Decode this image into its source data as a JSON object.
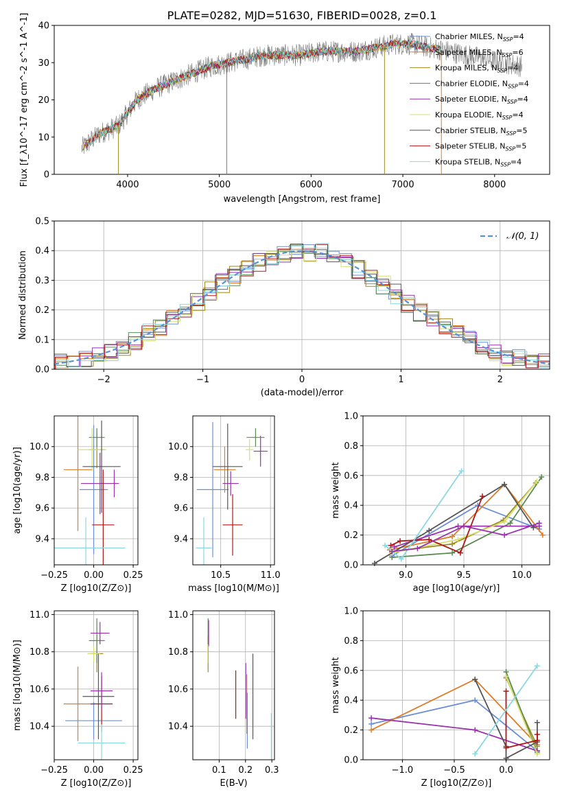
{
  "chart_data": [
    {
      "id": "spectrum",
      "type": "line",
      "title": "PLATE=0282, MJD=51630, FIBERID=0028, z=0.1",
      "xlabel": "wavelength [Angstrom, rest frame]",
      "ylabel": "Flux [f_λ10^-17 erg cm^-2 s^-1 A^-1]",
      "xlim": [
        3200,
        8600
      ],
      "ylim": [
        0,
        40
      ],
      "xticks": [
        4000,
        5000,
        6000,
        7000,
        8000
      ],
      "yticks": [
        0,
        10,
        20,
        30,
        40
      ],
      "grid": false,
      "legend_position": "top-right",
      "curve_x": [
        3500,
        3700,
        3900,
        4100,
        4300,
        4500,
        4700,
        4900,
        5100,
        5300,
        5500,
        5700,
        5900,
        6100,
        6300,
        6500,
        6700,
        6900,
        7100,
        7300,
        7500,
        7700,
        7900,
        8100,
        8300
      ],
      "curve_y": [
        7,
        11,
        13,
        20,
        23,
        25,
        27,
        29,
        30,
        31,
        32,
        32,
        32,
        33,
        33,
        33,
        34,
        35,
        35,
        34,
        33,
        32,
        31,
        30,
        29
      ],
      "series": [
        {
          "name": "Chabrier MILES, N_SSP=4",
          "color": "#6a8ed6"
        },
        {
          "name": "Salpeter MILES, N_SSP=6",
          "color": "#e07b25"
        },
        {
          "name": "Kroupa MILES, N_SSP=4",
          "color": "#a08a1a"
        },
        {
          "name": "Chabrier ELODIE, N_SSP=4",
          "color": "#5a8a50"
        },
        {
          "name": "Salpeter ELODIE, N_SSP=4",
          "color": "#9b2fae"
        },
        {
          "name": "Kroupa ELODIE, N_SSP=4",
          "color": "#d6e070"
        },
        {
          "name": "Chabrier STELIB, N_SSP=5",
          "color": "#555555"
        },
        {
          "name": "Salpeter STELIB, N_SSP=5",
          "color": "#b01515"
        },
        {
          "name": "Kroupa STELIB, N_SSP=4",
          "color": "#8ad8e0"
        }
      ]
    },
    {
      "id": "residuals",
      "type": "step",
      "xlabel": "(data-model)/error",
      "ylabel": "Normed distribution",
      "xlim": [
        -2.5,
        2.5
      ],
      "ylim": [
        0,
        0.5
      ],
      "xticks": [
        -2,
        -1,
        0,
        1,
        2
      ],
      "yticks": [
        0.0,
        0.1,
        0.2,
        0.3,
        0.4,
        0.5
      ],
      "grid": true,
      "legend_position": "top-right",
      "gaussian_label": "𝒩(0, 1)"
    },
    {
      "id": "age_vs_Z",
      "type": "scatter",
      "xlabel": "Z [log10(Z/Z⊙)]",
      "ylabel": "age  [log10(age/yr)]",
      "xlim": [
        -0.25,
        0.28
      ],
      "ylim": [
        9.23,
        10.2
      ],
      "xticks": [
        -0.25,
        0.0,
        0.25
      ],
      "yticks": [
        9.4,
        9.6,
        9.8,
        10.0
      ],
      "grid": true,
      "points": [
        {
          "series": 0,
          "x": 0.0,
          "y": 9.72,
          "xerr": 0.09,
          "yerr": 0.42
        },
        {
          "series": 1,
          "x": -0.1,
          "y": 9.85,
          "xerr": 0.09,
          "yerr": 0.4
        },
        {
          "series": 2,
          "x": 0.02,
          "y": 9.98,
          "xerr": 0.05,
          "yerr": 0.12
        },
        {
          "series": 3,
          "x": 0.02,
          "y": 10.06,
          "xerr": 0.05,
          "yerr": 0.06
        },
        {
          "series": 4,
          "x": 0.04,
          "y": 9.76,
          "xerr": 0.12,
          "yerr": 0.2
        },
        {
          "series": 5,
          "x": -0.01,
          "y": 9.98,
          "xerr": 0.09,
          "yerr": 0.14
        },
        {
          "series": 6,
          "x": 0.05,
          "y": 9.87,
          "xerr": 0.12,
          "yerr": 0.3
        },
        {
          "series": 7,
          "x": 0.06,
          "y": 9.49,
          "xerr": 0.07,
          "yerr": 0.36
        },
        {
          "series": 8,
          "x": -0.05,
          "y": 9.34,
          "xerr": 0.25,
          "yerr": 0.2
        },
        {
          "series": 4,
          "x": 0.13,
          "y": 9.76,
          "xerr": 0.01,
          "yerr": 0.09
        }
      ]
    },
    {
      "id": "age_vs_mass",
      "type": "scatter",
      "xlabel": "mass [log10(M/M⊙)]",
      "ylabel": "",
      "xlim": [
        10.22,
        11.04
      ],
      "ylim": [
        9.23,
        10.2
      ],
      "xticks": [
        10.5,
        11.0
      ],
      "yticks": [
        9.4,
        9.6,
        9.8,
        10.0
      ],
      "grid": true,
      "points": [
        {
          "series": 0,
          "x": 10.42,
          "y": 9.72,
          "xerr": 0.16,
          "yerr": 0.44
        },
        {
          "series": 1,
          "x": 10.54,
          "y": 9.85,
          "xerr": 0.11,
          "yerr": 0.15
        },
        {
          "series": 4,
          "x": 10.9,
          "y": 9.97,
          "xerr": 0.07,
          "yerr": 0.1
        },
        {
          "series": 3,
          "x": 10.85,
          "y": 10.06,
          "xerr": 0.09,
          "yerr": 0.06
        },
        {
          "series": 5,
          "x": 10.79,
          "y": 9.98,
          "xerr": 0.04,
          "yerr": 0.07
        },
        {
          "series": 6,
          "x": 10.57,
          "y": 9.87,
          "xerr": 0.15,
          "yerr": 0.28
        },
        {
          "series": 7,
          "x": 10.62,
          "y": 9.49,
          "xerr": 0.1,
          "yerr": 0.2
        },
        {
          "series": 8,
          "x": 10.33,
          "y": 9.34,
          "xerr": 0.08,
          "yerr": 0.2
        },
        {
          "series": 4,
          "x": 10.6,
          "y": 9.76,
          "xerr": 0.08,
          "yerr": 0.08
        }
      ]
    },
    {
      "id": "weight_vs_age",
      "type": "line",
      "xlabel": "age  [log10(age/yr)]",
      "ylabel": "mass weight",
      "xlim": [
        8.63,
        10.24
      ],
      "ylim": [
        0,
        1
      ],
      "xticks": [
        9.0,
        9.5,
        10.0
      ],
      "yticks": [
        0.0,
        0.2,
        0.4,
        0.6,
        0.8,
        1.0
      ],
      "grid": true,
      "lines": [
        {
          "series": 0,
          "x": [
            8.88,
            9.62,
            10.15
          ],
          "y": [
            0.06,
            0.4,
            0.24
          ]
        },
        {
          "series": 1,
          "x": [
            8.86,
            9.4,
            9.85,
            10.18
          ],
          "y": [
            0.1,
            0.19,
            0.54,
            0.2
          ]
        },
        {
          "series": 2,
          "x": [
            8.88,
            9.4,
            9.84,
            10.12
          ],
          "y": [
            0.09,
            0.14,
            0.3,
            0.55
          ]
        },
        {
          "series": 3,
          "x": [
            8.88,
            9.4,
            9.9,
            10.17
          ],
          "y": [
            0.05,
            0.08,
            0.28,
            0.59
          ]
        },
        {
          "series": 4,
          "x": [
            8.9,
            9.45,
            10.15
          ],
          "y": [
            0.12,
            0.26,
            0.26
          ]
        },
        {
          "series": 5,
          "x": [
            8.88,
            9.45,
            9.85,
            10.13
          ],
          "y": [
            0.08,
            0.17,
            0.29,
            0.56
          ]
        },
        {
          "series": 6,
          "x": [
            8.73,
            9.2,
            9.85,
            10.1
          ],
          "y": [
            0.01,
            0.23,
            0.54,
            0.25
          ]
        },
        {
          "series": 7,
          "x": [
            8.87,
            8.95,
            9.2,
            9.47,
            9.66
          ],
          "y": [
            0.13,
            0.16,
            0.17,
            0.08,
            0.46
          ]
        },
        {
          "series": 8,
          "x": [
            8.82,
            8.96,
            9.48
          ],
          "y": [
            0.13,
            0.04,
            0.63
          ]
        },
        {
          "series": 4,
          "x": [
            8.88,
            9.1,
            9.5,
            9.85,
            10.15
          ],
          "y": [
            0.09,
            0.11,
            0.26,
            0.2,
            0.28
          ]
        }
      ]
    },
    {
      "id": "mass_vs_Z",
      "type": "scatter",
      "xlabel": "Z [log10(Z/Z⊙)]",
      "ylabel": "mass [log10(M/M⊙)]",
      "xlim": [
        -0.25,
        0.28
      ],
      "ylim": [
        10.22,
        11.02
      ],
      "xticks": [
        -0.25,
        0.0,
        0.25
      ],
      "yticks": [
        10.4,
        10.6,
        10.8,
        11.0
      ],
      "grid": true,
      "points": [
        {
          "series": 0,
          "x": 0.0,
          "y": 10.43,
          "xerr": 0.18,
          "yerr": 0.1
        },
        {
          "series": 1,
          "x": -0.1,
          "y": 10.52,
          "xerr": 0.09,
          "yerr": 0.2
        },
        {
          "series": 2,
          "x": 0.02,
          "y": 10.79,
          "xerr": 0.04,
          "yerr": 0.1
        },
        {
          "series": 3,
          "x": 0.02,
          "y": 10.86,
          "xerr": 0.05,
          "yerr": 0.12
        },
        {
          "series": 4,
          "x": 0.04,
          "y": 10.9,
          "xerr": 0.06,
          "yerr": 0.06
        },
        {
          "series": 5,
          "x": 0.0,
          "y": 10.79,
          "xerr": 0.04,
          "yerr": 0.04
        },
        {
          "series": 6,
          "x": 0.03,
          "y": 10.56,
          "xerr": 0.1,
          "yerr": 0.23
        },
        {
          "series": 7,
          "x": 0.05,
          "y": 10.52,
          "xerr": 0.07,
          "yerr": 0.15
        },
        {
          "series": 8,
          "x": 0.05,
          "y": 10.31,
          "xerr": 0.15,
          "yerr": 0.1
        },
        {
          "series": 4,
          "x": 0.05,
          "y": 10.59,
          "xerr": 0.07,
          "yerr": 0.1
        }
      ]
    },
    {
      "id": "mass_vs_EBV",
      "type": "scatter",
      "xlabel": "E(B-V)",
      "ylabel": "",
      "xlim": [
        0.0,
        0.31
      ],
      "ylim": [
        10.22,
        11.02
      ],
      "xticks": [
        0.1,
        0.2,
        0.3
      ],
      "yticks": [
        10.4,
        10.6,
        10.8,
        11.0
      ],
      "grid": true,
      "points": [
        {
          "series": 0,
          "x": 0.207,
          "y": 10.43,
          "xerr": 0.0,
          "yerr": 0.15
        },
        {
          "series": 1,
          "x": 0.205,
          "y": 10.52,
          "xerr": 0.0,
          "yerr": 0.16
        },
        {
          "series": 2,
          "x": 0.058,
          "y": 10.79,
          "xerr": 0.0,
          "yerr": 0.1
        },
        {
          "series": 3,
          "x": 0.058,
          "y": 10.86,
          "xerr": 0.0,
          "yerr": 0.12
        },
        {
          "series": 4,
          "x": 0.06,
          "y": 10.9,
          "xerr": 0.0,
          "yerr": 0.07
        },
        {
          "series": 5,
          "x": 0.057,
          "y": 10.79,
          "xerr": 0.0,
          "yerr": 0.05
        },
        {
          "series": 6,
          "x": 0.228,
          "y": 10.56,
          "xerr": 0.0,
          "yerr": 0.23
        },
        {
          "series": 7,
          "x": 0.163,
          "y": 10.57,
          "xerr": 0.0,
          "yerr": 0.13
        },
        {
          "series": 8,
          "x": 0.298,
          "y": 10.31,
          "xerr": 0.0,
          "yerr": 0.16
        },
        {
          "series": 4,
          "x": 0.201,
          "y": 10.59,
          "xerr": 0.0,
          "yerr": 0.15
        }
      ]
    },
    {
      "id": "weight_vs_Z",
      "type": "line",
      "xlabel": "Z [log10(Z/Z⊙)]",
      "ylabel": "mass weight",
      "xlim": [
        -1.38,
        0.42
      ],
      "ylim": [
        0,
        1
      ],
      "xticks": [
        -1.0,
        -0.5,
        0.0
      ],
      "yticks": [
        0.0,
        0.2,
        0.4,
        0.6,
        0.8,
        1.0
      ],
      "grid": true,
      "lines": [
        {
          "series": 0,
          "x": [
            -1.3,
            -0.3,
            0.3
          ],
          "y": [
            0.24,
            0.4,
            0.06
          ]
        },
        {
          "series": 1,
          "x": [
            -1.3,
            -0.3,
            0.3
          ],
          "y": [
            0.2,
            0.54,
            0.1
          ]
        },
        {
          "series": 2,
          "x": [
            0.0,
            0.3
          ],
          "y": [
            0.55,
            0.09
          ]
        },
        {
          "series": 3,
          "x": [
            0.0,
            0.3
          ],
          "y": [
            0.59,
            0.05
          ]
        },
        {
          "series": 4,
          "x": [
            -1.3,
            -0.3,
            0.3
          ],
          "y": [
            0.28,
            0.2,
            0.06
          ]
        },
        {
          "series": 5,
          "x": [
            0.0,
            0.3
          ],
          "y": [
            0.56,
            0.04
          ]
        },
        {
          "series": 6,
          "x": [
            -0.3,
            0.0,
            0.0,
            0.3,
            0.3
          ],
          "y": [
            0.54,
            0.09,
            0.01,
            0.12,
            0.25
          ]
        },
        {
          "series": 7,
          "x": [
            0.0,
            0.0,
            0.3,
            0.3
          ],
          "y": [
            0.46,
            0.08,
            0.13,
            0.17
          ]
        },
        {
          "series": 8,
          "x": [
            -0.3,
            0.3
          ],
          "y": [
            0.04,
            0.63
          ]
        }
      ]
    }
  ]
}
